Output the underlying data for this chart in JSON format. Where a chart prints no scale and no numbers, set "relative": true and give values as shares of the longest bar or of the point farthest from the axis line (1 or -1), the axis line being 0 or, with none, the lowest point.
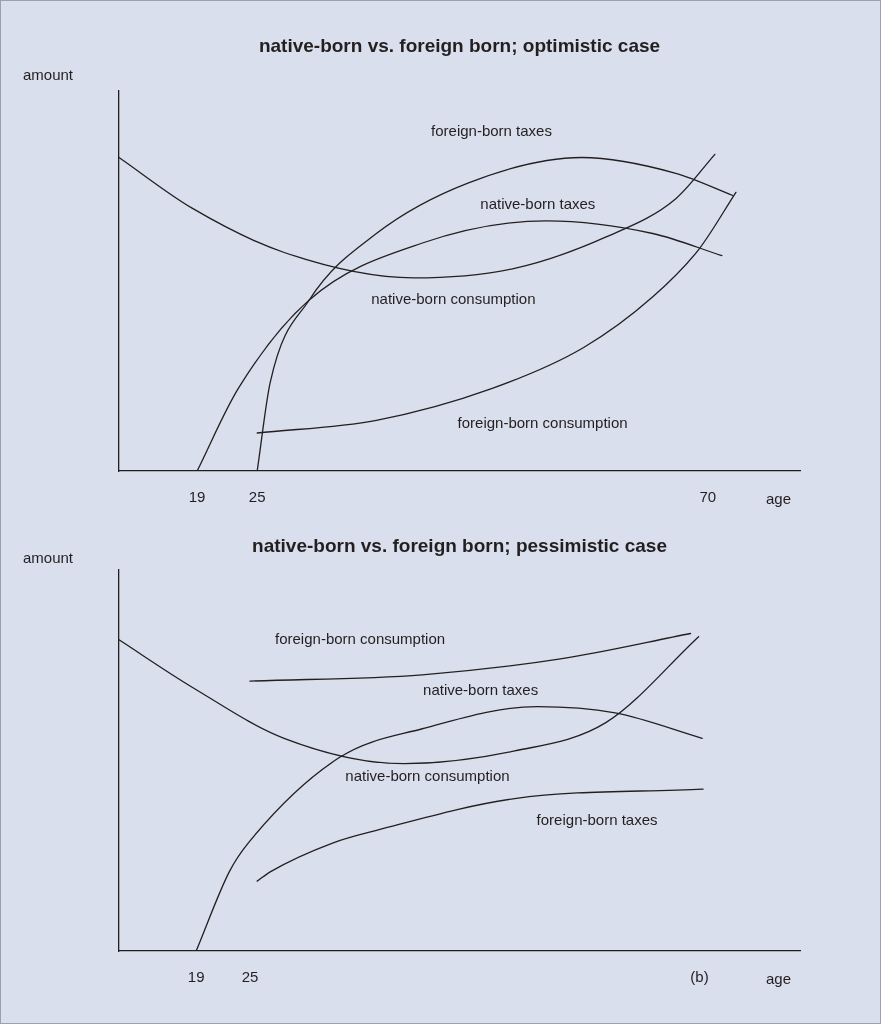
{
  "chart_data": [
    {
      "type": "line",
      "title": "native-born vs. foreign born; optimistic case",
      "xlabel": "age",
      "ylabel": "amount",
      "relative": true,
      "xlim": [
        11.2,
        79.2
      ],
      "xticks": [
        19,
        25,
        70
      ],
      "grid": false,
      "legend": false,
      "series": [
        {
          "name": "native-born consumption",
          "color": "#231f20",
          "x": [
            11.2,
            18.5,
            27.7,
            40.6,
            50.7,
            59.9,
            66.8,
            70.7
          ],
          "values": [
            0.99,
            0.83,
            0.69,
            0.61,
            0.64,
            0.74,
            0.86,
            1.0
          ]
        },
        {
          "name": "native-born taxes",
          "color": "#231f20",
          "x": [
            19,
            23.1,
            30.2,
            41.5,
            53.9,
            64.5,
            71.4
          ],
          "values": [
            0,
            0.26,
            0.54,
            0.72,
            0.79,
            0.75,
            0.68
          ]
        },
        {
          "name": "foreign-born taxes",
          "color": "#231f20",
          "x": [
            25,
            26.3,
            30.2,
            36.9,
            46.1,
            57.4,
            66.8,
            72.5
          ],
          "values": [
            0,
            0.28,
            0.54,
            0.75,
            0.91,
            0.99,
            0.94,
            0.87
          ]
        },
        {
          "name": "foreign-born consumption",
          "color": "#231f20",
          "x": [
            25,
            36.9,
            48.4,
            57.6,
            64.5,
            69.1,
            72.8
          ],
          "values": [
            0.12,
            0.16,
            0.26,
            0.39,
            0.55,
            0.7,
            0.88
          ]
        }
      ]
    },
    {
      "type": "line",
      "title": "native-born vs. foreign born; pessimistic case",
      "xlabel": "age",
      "ylabel": "amount",
      "relative": true,
      "xlim": [
        10.4,
        86.3
      ],
      "xticks": [
        19,
        25,
        {
          "value": 75.1,
          "label": "(b)"
        }
      ],
      "grid": false,
      "legend": false,
      "series": [
        {
          "name": "native-born consumption",
          "color": "#231f20",
          "x": [
            10.4,
            18.6,
            28.8,
            42.2,
            54.5,
            64.7,
            75.0
          ],
          "values": [
            0.98,
            0.83,
            0.67,
            0.59,
            0.63,
            0.72,
            0.99
          ]
        },
        {
          "name": "native-born taxes",
          "color": "#231f20",
          "x": [
            19,
            22.7,
            24.8,
            35.0,
            44.2,
            57.0,
            65.7,
            75.4
          ],
          "values": [
            0,
            0.25,
            0.34,
            0.61,
            0.7,
            0.77,
            0.75,
            0.67
          ]
        },
        {
          "name": "foreign-born taxes",
          "color": "#231f20",
          "x": [
            25.8,
            27.3,
            34.2,
            39.1,
            54.5,
            75.5
          ],
          "values": [
            0.22,
            0.25,
            0.34,
            0.38,
            0.48,
            0.51
          ]
        },
        {
          "name": "foreign-born consumption",
          "color": "#231f20",
          "x": [
            25,
            44.2,
            59.6,
            74.1
          ],
          "values": [
            0.85,
            0.87,
            0.92,
            1.0
          ]
        }
      ]
    }
  ]
}
